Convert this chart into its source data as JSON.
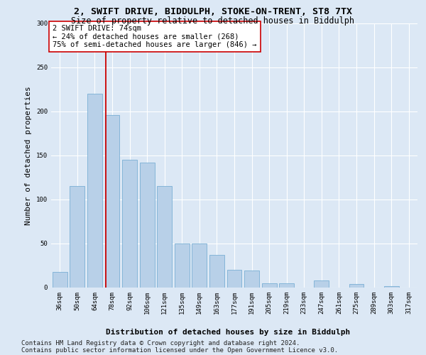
{
  "title_line1": "2, SWIFT DRIVE, BIDDULPH, STOKE-ON-TRENT, ST8 7TX",
  "title_line2": "Size of property relative to detached houses in Biddulph",
  "xlabel": "Distribution of detached houses by size in Biddulph",
  "ylabel": "Number of detached properties",
  "categories": [
    "36sqm",
    "50sqm",
    "64sqm",
    "78sqm",
    "92sqm",
    "106sqm",
    "121sqm",
    "135sqm",
    "149sqm",
    "163sqm",
    "177sqm",
    "191sqm",
    "205sqm",
    "219sqm",
    "233sqm",
    "247sqm",
    "261sqm",
    "275sqm",
    "289sqm",
    "303sqm",
    "317sqm"
  ],
  "values": [
    18,
    115,
    220,
    196,
    145,
    142,
    115,
    50,
    50,
    37,
    20,
    19,
    5,
    5,
    0,
    8,
    0,
    4,
    0,
    2,
    0
  ],
  "bar_color": "#b8d0e8",
  "bar_edge_color": "#7aafd4",
  "vline_x_index": 3,
  "vline_color": "#cc0000",
  "annotation_text": "2 SWIFT DRIVE: 74sqm\n← 24% of detached houses are smaller (268)\n75% of semi-detached houses are larger (846) →",
  "annotation_box_facecolor": "#ffffff",
  "annotation_box_edgecolor": "#cc0000",
  "ylim": [
    0,
    300
  ],
  "yticks": [
    0,
    50,
    100,
    150,
    200,
    250,
    300
  ],
  "bg_color": "#dce8f5",
  "plot_bg_color": "#dce8f5",
  "footer_line1": "Contains HM Land Registry data © Crown copyright and database right 2024.",
  "footer_line2": "Contains public sector information licensed under the Open Government Licence v3.0.",
  "title_fontsize": 9.5,
  "subtitle_fontsize": 8.5,
  "ylabel_fontsize": 8,
  "xlabel_fontsize": 8,
  "tick_fontsize": 6.5,
  "annotation_fontsize": 7.5,
  "footer_fontsize": 6.5,
  "grid_color": "#ffffff",
  "grid_linewidth": 0.8
}
